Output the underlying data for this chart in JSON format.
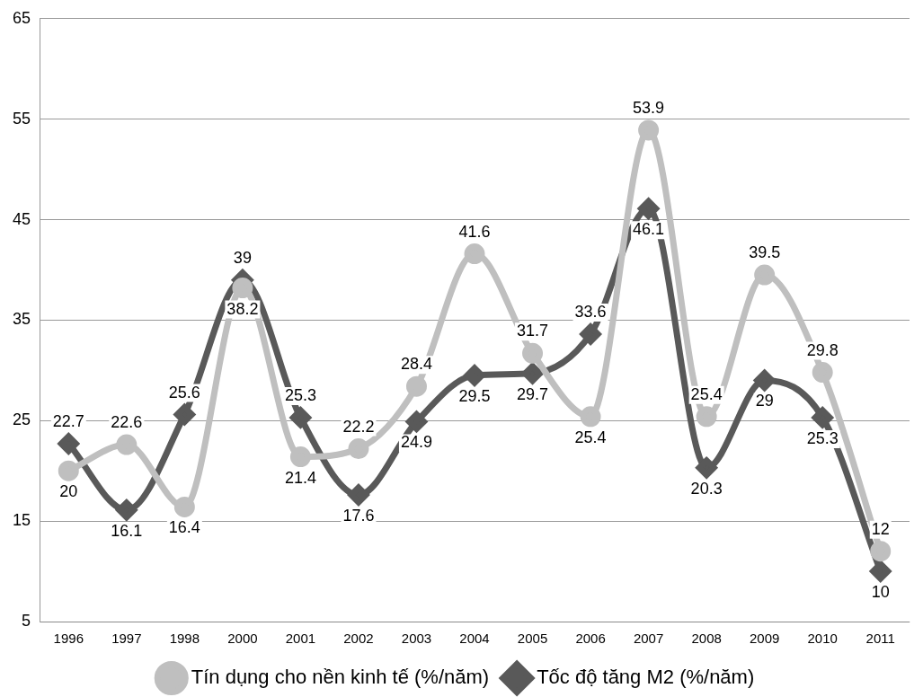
{
  "chart_data": {
    "type": "line",
    "categories": [
      "1996",
      "1997",
      "1998",
      "2000",
      "2001",
      "2002",
      "2003",
      "2004",
      "2005",
      "2006",
      "2007",
      "2008",
      "2009",
      "2010",
      "2011"
    ],
    "series": [
      {
        "name": "Tín dụng cho nền kinh tế (%/năm)",
        "color": "#bfbfbf",
        "marker": "circle",
        "values": [
          20,
          22.6,
          16.4,
          38.2,
          21.4,
          22.2,
          28.4,
          41.6,
          31.7,
          25.4,
          53.9,
          25.4,
          39.5,
          29.8,
          12
        ]
      },
      {
        "name": "Tốc độ tăng M2 (%/năm)",
        "color": "#595959",
        "marker": "diamond",
        "values": [
          22.7,
          16.1,
          25.6,
          39,
          25.3,
          17.6,
          24.9,
          29.5,
          29.7,
          33.6,
          46.1,
          20.3,
          29,
          25.3,
          10
        ]
      }
    ],
    "ylim": [
      5,
      65
    ],
    "yticks": [
      5,
      15,
      25,
      35,
      45,
      55,
      65
    ],
    "grid": "y",
    "legend": "bottom",
    "data_labels": true
  }
}
